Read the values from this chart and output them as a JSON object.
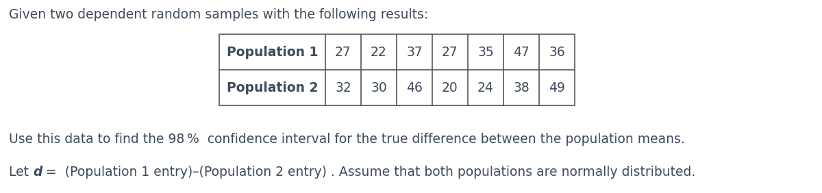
{
  "title_text": "Given two dependent random samples with the following results:",
  "pop1_label": "Population 1",
  "pop2_label": "Population 2",
  "pop1_values": [
    27,
    22,
    37,
    27,
    35,
    47,
    36
  ],
  "pop2_values": [
    32,
    30,
    46,
    20,
    24,
    38,
    49
  ],
  "line2": "Use this data to find the 98 %  confidence interval for the true difference between the population means.",
  "line3_rest": " (Population 1 entry)–(Population 2 entry) . Assume that both populations are normally distributed.",
  "bg_color": "#ffffff",
  "text_color": "#3d4a5c",
  "border_color": "#555555",
  "font_size": 13.5,
  "table_header_font_size": 13.5,
  "fig_width": 12.0,
  "fig_height": 2.82
}
